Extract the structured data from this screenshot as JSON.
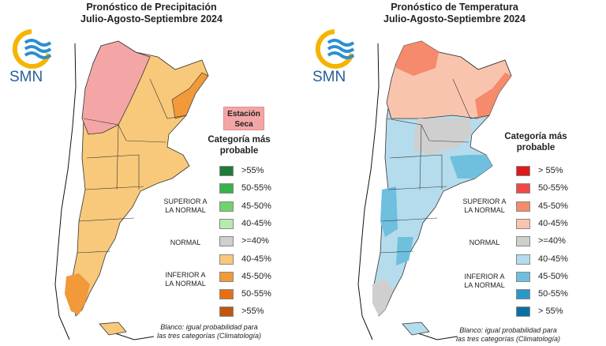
{
  "logo_text": "SMN",
  "precip": {
    "title_line1": "Pronóstico de Precipitación",
    "title_line2": "Julio-Agosto-Septiembre 2024",
    "dry_season_label": "Estación\nSeca",
    "dry_season_color": "#f4a6a6",
    "legend_title": "Categoría más\nprobable",
    "cat_superior": "SUPERIOR A\nLA NORMAL",
    "cat_normal": "NORMAL",
    "cat_inferior": "INFERIOR A\nLA NORMAL",
    "legend": [
      {
        "label": ">55%",
        "color": "#1e7b34"
      },
      {
        "label": "50-55%",
        "color": "#38b24a"
      },
      {
        "label": "45-50%",
        "color": "#6fd36a"
      },
      {
        "label": "40-45%",
        "color": "#b6ebb0"
      },
      {
        "label": ">=40%",
        "color": "#cfcfcf"
      },
      {
        "label": "40-45%",
        "color": "#f8c97a"
      },
      {
        "label": "45-50%",
        "color": "#f2993a"
      },
      {
        "label": "50-55%",
        "color": "#e56f12"
      },
      {
        "label": ">55%",
        "color": "#c0560f"
      }
    ],
    "note": "Blanco: igual probabilidad para\nlas tres categorías (Climatología)"
  },
  "temp": {
    "title_line1": "Pronóstico de Temperatura",
    "title_line2": "Julio-Agosto-Septiembre 2024",
    "legend_title": "Categoría más\nprobable",
    "cat_superior": "SUPERIOR A\nLA NORMAL",
    "cat_normal": "NORMAL",
    "cat_inferior": "INFERIOR A\nLA NORMAL",
    "legend": [
      {
        "label": "> 55%",
        "color": "#e01a1a"
      },
      {
        "label": "50-55%",
        "color": "#f04848"
      },
      {
        "label": "45-50%",
        "color": "#f58a6d"
      },
      {
        "label": "40-45%",
        "color": "#f9c4ae"
      },
      {
        "label": ">=40%",
        "color": "#cfcfcf"
      },
      {
        "label": "40-45%",
        "color": "#b5dcec"
      },
      {
        "label": "45-50%",
        "color": "#6fbfdf"
      },
      {
        "label": "50-55%",
        "color": "#2a97c9"
      },
      {
        "label": "> 55%",
        "color": "#0b6fa6"
      }
    ],
    "note": "Blanco: igual probabilidad para\nlas tres categorías (Climatología)"
  },
  "colors": {
    "precip_dry": "#f4a6a6",
    "precip_above40": "#f8c97a",
    "precip_above45": "#f2993a",
    "temp_red40": "#f9c4ae",
    "temp_red45": "#f58a6d",
    "temp_normal": "#cfcfcf",
    "temp_blue40": "#b5dcec",
    "temp_blue45": "#6fbfdf",
    "logo_blue": "#2a8fd0",
    "logo_yellow": "#f4b400"
  }
}
